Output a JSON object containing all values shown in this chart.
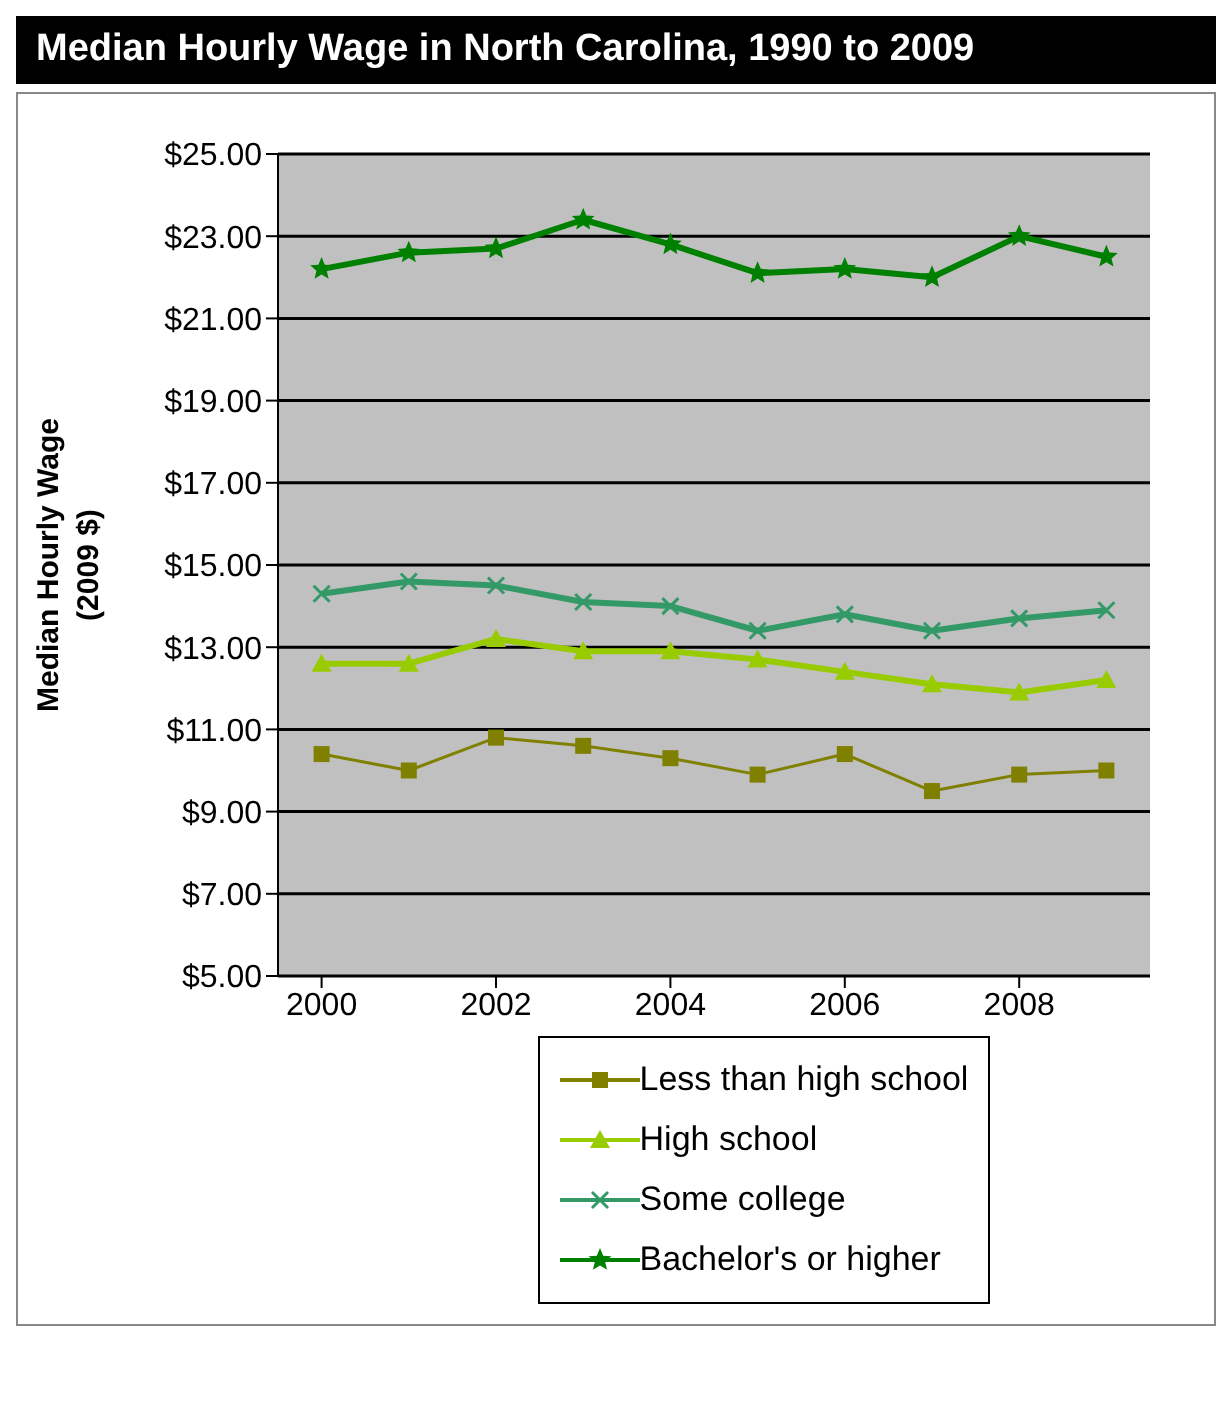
{
  "chart_data": {
    "type": "line",
    "title": "Median Hourly Wage in North Carolina, 1990 to 2009",
    "ylabel": "Median Hourly Wage\n(2009 $)",
    "x": [
      2000,
      2001,
      2002,
      2003,
      2004,
      2005,
      2006,
      2007,
      2008,
      2009
    ],
    "xlim": [
      1999.5,
      2009.5
    ],
    "xticks": [
      2000,
      2002,
      2004,
      2006,
      2008
    ],
    "ylim": [
      5,
      25
    ],
    "yticks": [
      {
        "value": 5,
        "label": "$5.00"
      },
      {
        "value": 7,
        "label": "$7.00"
      },
      {
        "value": 9,
        "label": "$9.00"
      },
      {
        "value": 11,
        "label": "$11.00"
      },
      {
        "value": 13,
        "label": "$13.00"
      },
      {
        "value": 15,
        "label": "$15.00"
      },
      {
        "value": 17,
        "label": "$17.00"
      },
      {
        "value": 19,
        "label": "$19.00"
      },
      {
        "value": 21,
        "label": "$21.00"
      },
      {
        "value": 23,
        "label": "$23.00"
      },
      {
        "value": 25,
        "label": "$25.00"
      }
    ],
    "grid": "y",
    "legend": "bottom",
    "series": [
      {
        "name": "Less than high school",
        "color": "#808000",
        "marker": "square",
        "values": [
          10.4,
          10.0,
          10.8,
          10.6,
          10.3,
          9.9,
          10.4,
          9.5,
          9.9,
          10.0
        ]
      },
      {
        "name": "High school",
        "color": "#99cc00",
        "marker": "triangle",
        "values": [
          12.6,
          12.6,
          13.2,
          12.9,
          12.9,
          12.7,
          12.4,
          12.1,
          11.9,
          12.2
        ]
      },
      {
        "name": "Some college",
        "color": "#339966",
        "marker": "cross",
        "values": [
          14.3,
          14.6,
          14.5,
          14.1,
          14.0,
          13.4,
          13.8,
          13.4,
          13.7,
          13.9
        ]
      },
      {
        "name": "Bachelor's or higher",
        "color": "#008000",
        "marker": "star",
        "values": [
          22.2,
          22.6,
          22.7,
          23.4,
          22.8,
          22.1,
          22.2,
          22.0,
          23.0,
          22.5
        ]
      }
    ]
  }
}
